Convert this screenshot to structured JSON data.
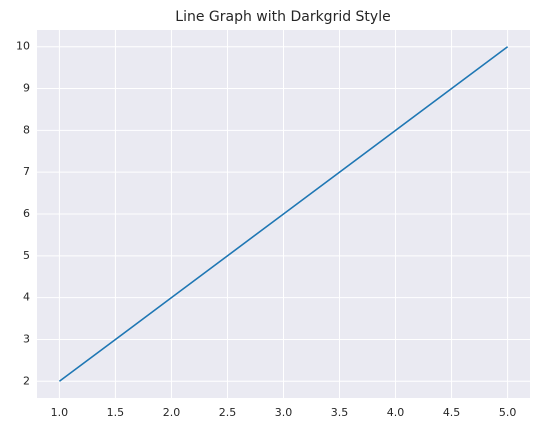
{
  "chart_data": {
    "type": "line",
    "title": "Line Graph with Darkgrid Style",
    "x": [
      1,
      2,
      3,
      4,
      5
    ],
    "series": [
      {
        "color": "#1f77b4",
        "values": [
          2,
          4,
          6,
          8,
          10
        ]
      }
    ],
    "xlim": [
      0.8,
      5.2
    ],
    "xticks": [
      {
        "value": 1,
        "label": "1.0"
      },
      1.5,
      {
        "value": 2,
        "label": "2.0"
      },
      2.5,
      {
        "value": 3,
        "label": "3.0"
      },
      3.5,
      {
        "value": 4,
        "label": "4.0"
      },
      4.5,
      {
        "value": 5,
        "label": "5.0"
      }
    ],
    "ylim": [
      1.6,
      10.4
    ],
    "yticks": [
      2,
      3,
      4,
      5,
      6,
      7,
      8,
      9,
      10
    ],
    "grid": true,
    "background": "#eaeaf2",
    "grid_color": "#ffffff"
  }
}
